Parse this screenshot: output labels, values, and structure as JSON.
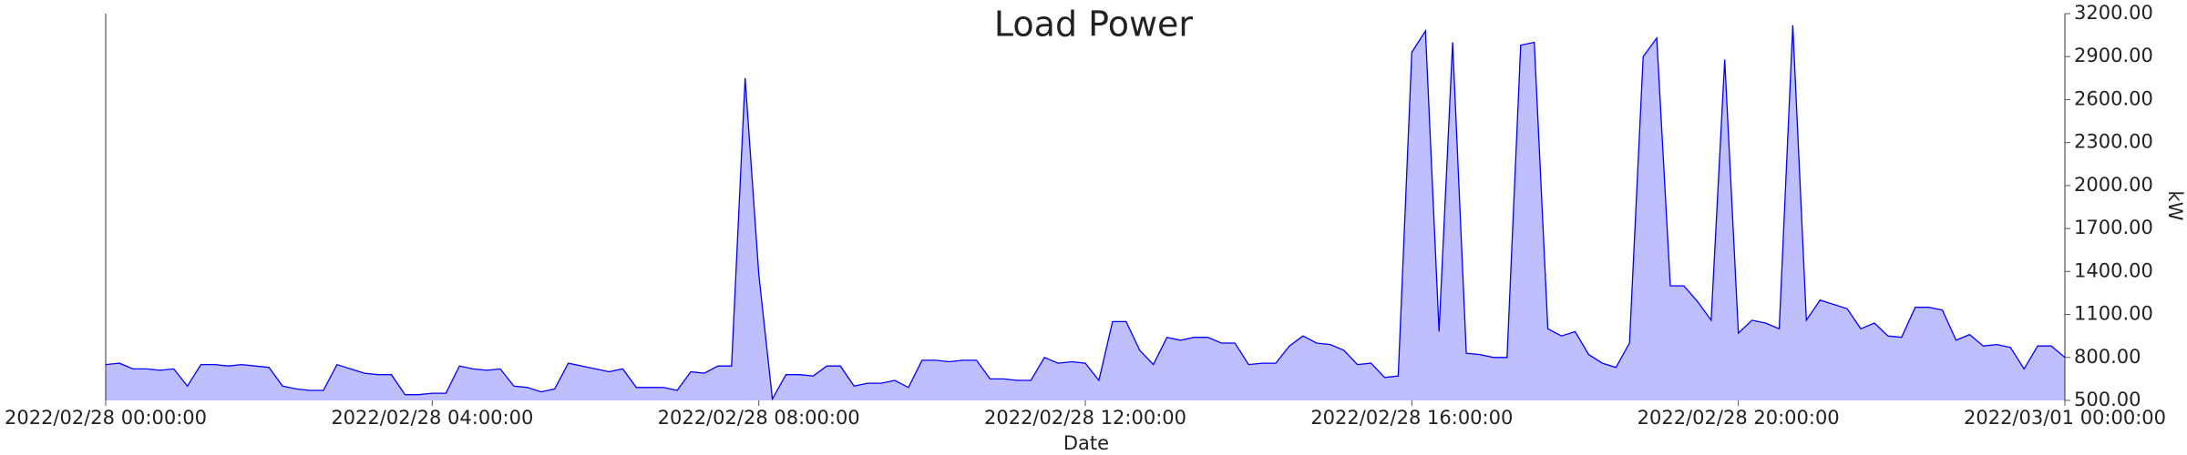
{
  "chart_data": {
    "type": "area",
    "title": "Load Power",
    "x_label": "Date",
    "y_label": "kW",
    "color": "#0000ff",
    "x": [
      "2022/02/28 00:00:00",
      "2022/02/28 00:10:00",
      "2022/02/28 00:20:00",
      "2022/02/28 00:30:00",
      "2022/02/28 00:40:00",
      "2022/02/28 00:50:00",
      "2022/02/28 01:00:00",
      "2022/02/28 01:10:00",
      "2022/02/28 01:20:00",
      "2022/02/28 01:30:00",
      "2022/02/28 01:40:00",
      "2022/02/28 01:50:00",
      "2022/02/28 02:00:00",
      "2022/02/28 02:10:00",
      "2022/02/28 02:20:00",
      "2022/02/28 02:30:00",
      "2022/02/28 02:40:00",
      "2022/02/28 02:50:00",
      "2022/02/28 03:00:00",
      "2022/02/28 03:10:00",
      "2022/02/28 03:20:00",
      "2022/02/28 03:30:00",
      "2022/02/28 03:40:00",
      "2022/02/28 03:50:00",
      "2022/02/28 04:00:00",
      "2022/02/28 04:10:00",
      "2022/02/28 04:20:00",
      "2022/02/28 04:30:00",
      "2022/02/28 04:40:00",
      "2022/02/28 04:50:00",
      "2022/02/28 05:00:00",
      "2022/02/28 05:10:00",
      "2022/02/28 05:20:00",
      "2022/02/28 05:30:00",
      "2022/02/28 05:40:00",
      "2022/02/28 05:50:00",
      "2022/02/28 06:00:00",
      "2022/02/28 06:10:00",
      "2022/02/28 06:20:00",
      "2022/02/28 06:30:00",
      "2022/02/28 06:40:00",
      "2022/02/28 06:50:00",
      "2022/02/28 07:00:00",
      "2022/02/28 07:10:00",
      "2022/02/28 07:20:00",
      "2022/02/28 07:30:00",
      "2022/02/28 07:40:00",
      "2022/02/28 07:50:00",
      "2022/02/28 08:00:00",
      "2022/02/28 08:10:00",
      "2022/02/28 08:20:00",
      "2022/02/28 08:30:00",
      "2022/02/28 08:40:00",
      "2022/02/28 08:50:00",
      "2022/02/28 09:00:00",
      "2022/02/28 09:10:00",
      "2022/02/28 09:20:00",
      "2022/02/28 09:30:00",
      "2022/02/28 09:40:00",
      "2022/02/28 09:50:00",
      "2022/02/28 10:00:00",
      "2022/02/28 10:10:00",
      "2022/02/28 10:20:00",
      "2022/02/28 10:30:00",
      "2022/02/28 10:40:00",
      "2022/02/28 10:50:00",
      "2022/02/28 11:00:00",
      "2022/02/28 11:10:00",
      "2022/02/28 11:20:00",
      "2022/02/28 11:30:00",
      "2022/02/28 11:40:00",
      "2022/02/28 11:50:00",
      "2022/02/28 12:00:00",
      "2022/02/28 12:10:00",
      "2022/02/28 12:20:00",
      "2022/02/28 12:30:00",
      "2022/02/28 12:40:00",
      "2022/02/28 12:50:00",
      "2022/02/28 13:00:00",
      "2022/02/28 13:10:00",
      "2022/02/28 13:20:00",
      "2022/02/28 13:30:00",
      "2022/02/28 13:40:00",
      "2022/02/28 13:50:00",
      "2022/02/28 14:00:00",
      "2022/02/28 14:10:00",
      "2022/02/28 14:20:00",
      "2022/02/28 14:30:00",
      "2022/02/28 14:40:00",
      "2022/02/28 14:50:00",
      "2022/02/28 15:00:00",
      "2022/02/28 15:10:00",
      "2022/02/28 15:20:00",
      "2022/02/28 15:30:00",
      "2022/02/28 15:40:00",
      "2022/02/28 15:50:00",
      "2022/02/28 16:00:00",
      "2022/02/28 16:10:00",
      "2022/02/28 16:20:00",
      "2022/02/28 16:30:00",
      "2022/02/28 16:40:00",
      "2022/02/28 16:50:00",
      "2022/02/28 17:00:00",
      "2022/02/28 17:10:00",
      "2022/02/28 17:20:00",
      "2022/02/28 17:30:00",
      "2022/02/28 17:40:00",
      "2022/02/28 17:50:00",
      "2022/02/28 18:00:00",
      "2022/02/28 18:10:00",
      "2022/02/28 18:20:00",
      "2022/02/28 18:30:00",
      "2022/02/28 18:40:00",
      "2022/02/28 18:50:00",
      "2022/02/28 19:00:00",
      "2022/02/28 19:10:00",
      "2022/02/28 19:20:00",
      "2022/02/28 19:30:00",
      "2022/02/28 19:40:00",
      "2022/02/28 19:50:00",
      "2022/02/28 20:00:00",
      "2022/02/28 20:10:00",
      "2022/02/28 20:20:00",
      "2022/02/28 20:30:00",
      "2022/02/28 20:40:00",
      "2022/02/28 20:50:00",
      "2022/02/28 21:00:00",
      "2022/02/28 21:10:00",
      "2022/02/28 21:20:00",
      "2022/02/28 21:30:00",
      "2022/02/28 21:40:00",
      "2022/02/28 21:50:00",
      "2022/02/28 22:00:00",
      "2022/02/28 22:10:00",
      "2022/02/28 22:20:00",
      "2022/02/28 22:30:00",
      "2022/02/28 22:40:00",
      "2022/02/28 22:50:00",
      "2022/02/28 23:00:00",
      "2022/02/28 23:10:00",
      "2022/02/28 23:20:00",
      "2022/02/28 23:30:00",
      "2022/02/28 23:40:00",
      "2022/02/28 23:50:00",
      "2022/03/01 00:00:00"
    ],
    "values": [
      750,
      760,
      720,
      720,
      710,
      720,
      600,
      750,
      750,
      740,
      750,
      740,
      730,
      600,
      580,
      570,
      570,
      750,
      720,
      690,
      680,
      680,
      540,
      540,
      550,
      550,
      740,
      720,
      710,
      720,
      600,
      590,
      560,
      580,
      760,
      740,
      720,
      700,
      720,
      590,
      590,
      590,
      570,
      700,
      690,
      740,
      740,
      2750,
      1380,
      510,
      680,
      680,
      670,
      740,
      740,
      600,
      620,
      620,
      640,
      590,
      780,
      780,
      770,
      780,
      780,
      650,
      650,
      640,
      640,
      800,
      760,
      770,
      760,
      640,
      1050,
      1050,
      850,
      750,
      940,
      920,
      940,
      940,
      900,
      900,
      750,
      760,
      760,
      880,
      950,
      900,
      890,
      850,
      750,
      760,
      660,
      670,
      2930,
      3080,
      980,
      3000,
      830,
      820,
      800,
      800,
      2980,
      3000,
      1000,
      950,
      980,
      820,
      760,
      730,
      900,
      2900,
      3030,
      1300,
      1300,
      1190,
      1060,
      2880,
      970,
      1060,
      1040,
      1000,
      3120,
      1060,
      1200,
      1170,
      1140,
      1000,
      1040,
      950,
      940,
      1150,
      1150,
      1130,
      920,
      960,
      880,
      890,
      870,
      720,
      880,
      880,
      800
    ],
    "xlim": [
      "2022/02/28 00:00:00",
      "2022/03/01 00:00:00"
    ],
    "xticks": [
      "2022/02/28 00:00:00",
      "2022/02/28 04:00:00",
      "2022/02/28 08:00:00",
      "2022/02/28 12:00:00",
      "2022/02/28 16:00:00",
      "2022/02/28 20:00:00",
      "2022/03/01 00:00:00"
    ],
    "ylim": [
      500,
      3200
    ],
    "yticks": [
      {
        "value": 500,
        "label": "500.00"
      },
      {
        "value": 800,
        "label": "800.00"
      },
      {
        "value": 1100,
        "label": "1100.00"
      },
      {
        "value": 1400,
        "label": "1400.00"
      },
      {
        "value": 1700,
        "label": "1700.00"
      },
      {
        "value": 2000,
        "label": "2000.00"
      },
      {
        "value": 2300,
        "label": "2300.00"
      },
      {
        "value": 2600,
        "label": "2600.00"
      },
      {
        "value": 2900,
        "label": "2900.00"
      },
      {
        "value": 3200,
        "label": "3200.00"
      }
    ]
  }
}
